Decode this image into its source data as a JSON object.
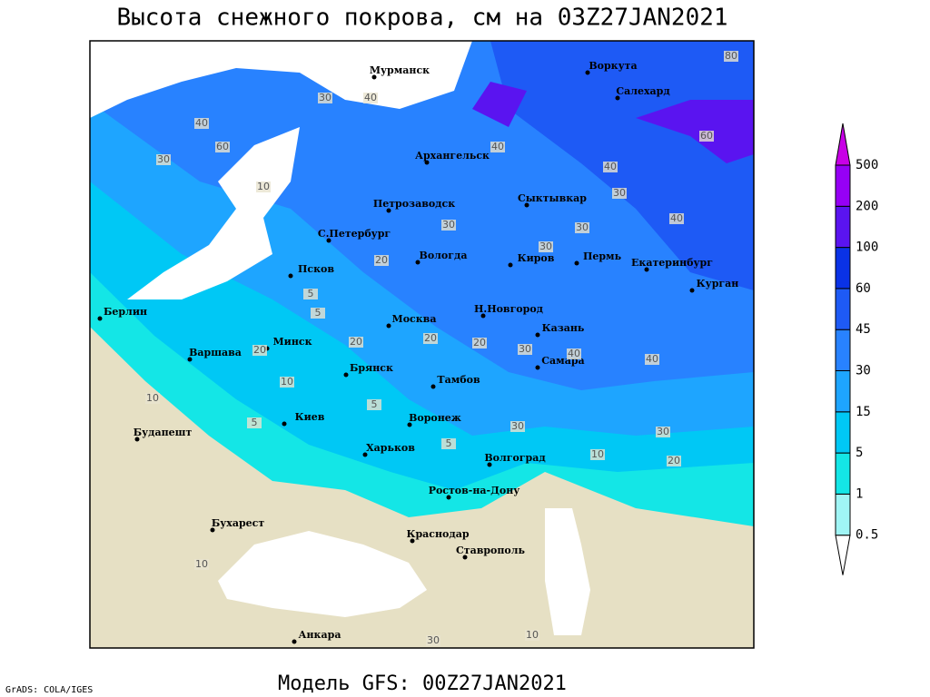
{
  "title": "Высота снежного покрова, см на 03Z27JAN2021",
  "footer": "Модель GFS: 00Z27JAN2021",
  "credit": "GrADS: COLA/IGES",
  "cities": [
    "Мурманск",
    "Воркута",
    "Салехард",
    "Архангельск",
    "Сыктывкар",
    "Петрозаводск",
    "С.Петербург",
    "Вологда",
    "Киров",
    "Пермь",
    "Екатеринбург",
    "Курган",
    "Псков",
    "Берлин",
    "Москва",
    "Н.Новгород",
    "Казань",
    "Варшава",
    "Минск",
    "Самара",
    "Брянск",
    "Тамбов",
    "Киев",
    "Воронеж",
    "Будапешт",
    "Харьков",
    "Волгоград",
    "Ростов-на-Дону",
    "Бухарест",
    "Краснодар",
    "Ставрополь",
    "Анкара"
  ],
  "contour_labels": [
    80,
    60,
    40,
    30,
    40,
    40,
    60,
    40,
    30,
    10,
    40,
    30,
    30,
    30,
    30,
    40,
    30,
    20,
    5,
    5,
    20,
    20,
    10,
    5,
    20,
    20,
    30,
    40,
    30,
    10,
    20,
    5,
    10,
    10,
    5,
    30,
    10
  ],
  "legend": {
    "levels": [
      0.5,
      1,
      5,
      15,
      30,
      45,
      60,
      100,
      200,
      500
    ],
    "colors": [
      "#a0f5f5",
      "#14e6e6",
      "#00c8f5",
      "#1ea5ff",
      "#2882ff",
      "#1e5af5",
      "#0a32e6",
      "#5a14f0",
      "#9600f5",
      "#c800e6"
    ]
  }
}
